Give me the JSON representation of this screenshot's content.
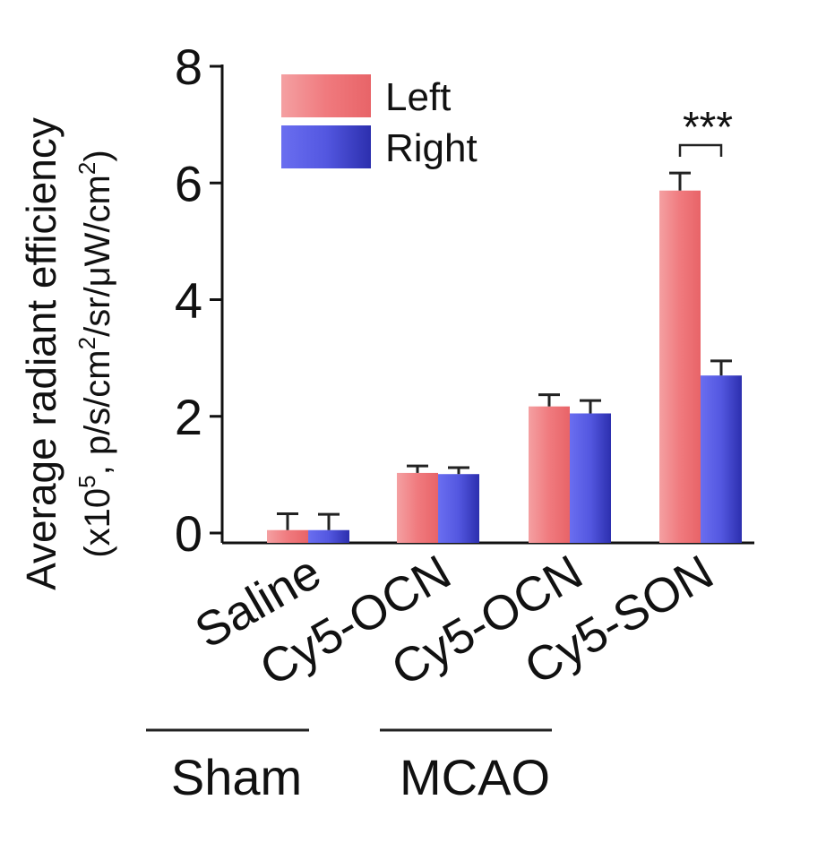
{
  "chart_data": {
    "type": "bar",
    "categories": [
      "Saline",
      "Cy5-OCN",
      "Cy5-OCN",
      "Cy5-SON"
    ],
    "groups": [
      {
        "label": "Sham",
        "categories": [
          0
        ]
      },
      {
        "label": "MCAO",
        "categories": [
          1,
          2
        ]
      }
    ],
    "series": [
      {
        "name": "Left",
        "color": "#f07a7e",
        "values": [
          0.05,
          1.03,
          2.17,
          5.87
        ],
        "errors": [
          0.28,
          0.12,
          0.2,
          0.3
        ]
      },
      {
        "name": "Right",
        "color": "#4b4fd6",
        "values": [
          0.05,
          1.01,
          2.05,
          2.7
        ],
        "errors": [
          0.27,
          0.11,
          0.22,
          0.25
        ]
      }
    ],
    "ylabel_line1": "Average radiant efficiency",
    "ylabel_line2_parts": [
      "(x10",
      "5",
      ", p/s/cm",
      "2",
      "/sr/μW/cm",
      "2",
      ")"
    ],
    "ylim": [
      0,
      8
    ],
    "yticks": [
      0,
      2,
      4,
      6,
      8
    ],
    "xlabel": "",
    "title": "",
    "legend_position": "top-left",
    "annotation": {
      "text": "***",
      "category": 3
    }
  }
}
